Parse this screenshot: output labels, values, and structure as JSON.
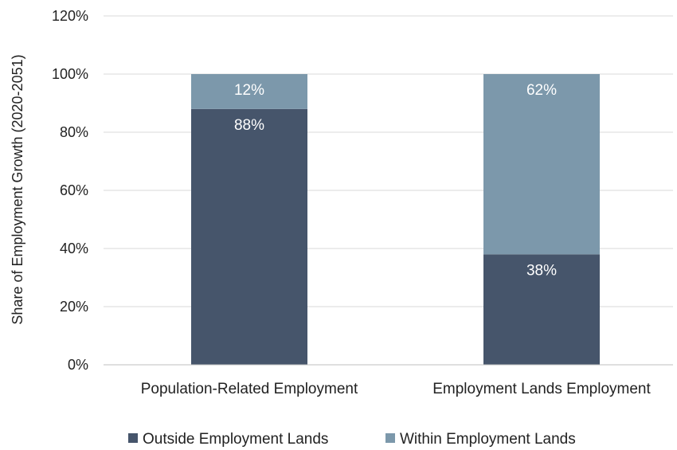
{
  "chart_data": {
    "type": "bar",
    "stacked": true,
    "categories": [
      "Population-Related Employment",
      "Employment Lands Employment"
    ],
    "series": [
      {
        "name": "Outside Employment Lands",
        "values": [
          88,
          38
        ],
        "labels": [
          "88%",
          "38%"
        ],
        "color": "#46556b"
      },
      {
        "name": "Within Employment Lands",
        "values": [
          12,
          62
        ],
        "labels": [
          "12%",
          "62%"
        ],
        "color": "#7c98ab"
      }
    ],
    "ylabel": "Share of Employment Growth (2020-2051)",
    "xlabel": "",
    "ylim": [
      0,
      120
    ],
    "yticks": [
      0,
      20,
      40,
      60,
      80,
      100,
      120
    ],
    "ytick_labels": [
      "0%",
      "20%",
      "40%",
      "60%",
      "80%",
      "100%",
      "120%"
    ],
    "grid": true,
    "legend_position": "bottom"
  }
}
